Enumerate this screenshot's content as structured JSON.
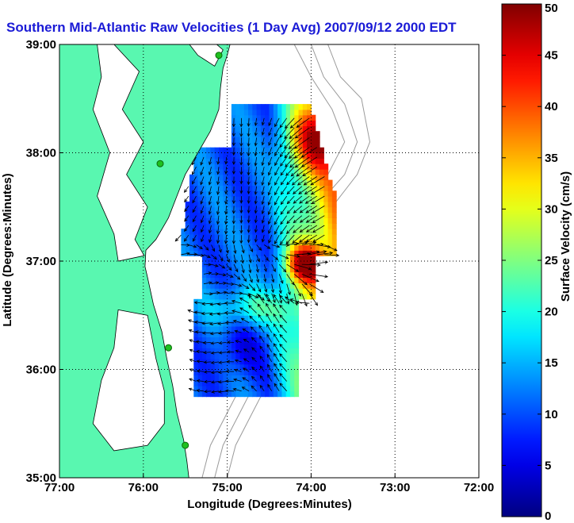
{
  "title": "Southern Mid-Atlantic Raw Velocities (1 Day Avg) 2007/09/12 2000 EDT",
  "colors": {
    "title": "#1b1bd6",
    "land": "#59f7b0",
    "land_outline": "#000000",
    "bathymetry": "#9a9a9a",
    "station": "#1fc01f",
    "grid": "#000000",
    "arrow": "#000000"
  },
  "map": {
    "xlabel": "Longitude (Degrees:Minutes)",
    "ylabel": "Latitude (Degrees:Minutes)",
    "lon_range": [
      -77,
      -72
    ],
    "lat_range": [
      35,
      39
    ],
    "lon_ticks": [
      {
        "value": -77,
        "label": "77:00"
      },
      {
        "value": -76,
        "label": "76:00"
      },
      {
        "value": -75,
        "label": "75:00"
      },
      {
        "value": -74,
        "label": "74:00"
      },
      {
        "value": -73,
        "label": "73:00"
      },
      {
        "value": -72,
        "label": "72:00"
      }
    ],
    "lat_ticks": [
      {
        "value": 35,
        "label": "35:00"
      },
      {
        "value": 36,
        "label": "36:00"
      },
      {
        "value": 37,
        "label": "37:00"
      },
      {
        "value": 38,
        "label": "38:00"
      },
      {
        "value": 39,
        "label": "39:00"
      }
    ],
    "grid": "dotted"
  },
  "colorbar": {
    "label": "Surface Velocity (cm/s)",
    "min": 0,
    "max": 50,
    "ticks": [
      {
        "value": 0,
        "label": "0"
      },
      {
        "value": 5,
        "label": "5"
      },
      {
        "value": 10,
        "label": "10"
      },
      {
        "value": 15,
        "label": "15"
      },
      {
        "value": 20,
        "label": "20"
      },
      {
        "value": 25,
        "label": "25"
      },
      {
        "value": 30,
        "label": "30"
      },
      {
        "value": 35,
        "label": "35"
      },
      {
        "value": 40,
        "label": "40"
      },
      {
        "value": 45,
        "label": "45"
      },
      {
        "value": 50,
        "label": "50"
      }
    ],
    "colormap": "jet"
  },
  "stations": [
    {
      "lon": -75.1,
      "lat": 38.9
    },
    {
      "lon": -75.8,
      "lat": 37.9
    },
    {
      "lon": -75.7,
      "lat": 36.2
    },
    {
      "lon": -75.5,
      "lat": 35.3
    }
  ]
}
